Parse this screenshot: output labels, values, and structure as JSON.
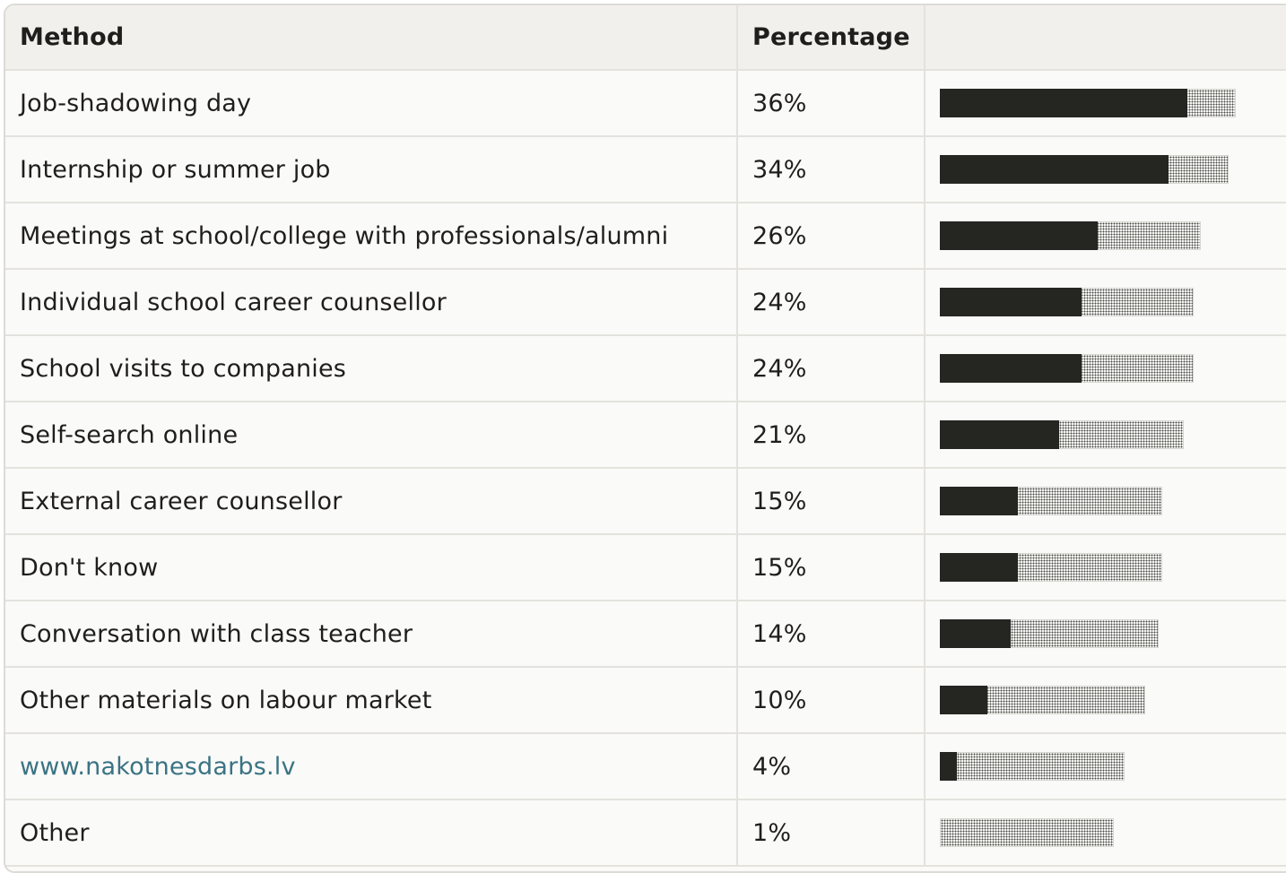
{
  "table": {
    "headers": {
      "method": "Method",
      "percentage": "Percentage",
      "bar": ""
    },
    "rows": [
      {
        "method": "Job-shadowing day",
        "percentage": "36%",
        "value": 36,
        "is_link": false
      },
      {
        "method": "Internship or summer job",
        "percentage": "34%",
        "value": 34,
        "is_link": false
      },
      {
        "method": "Meetings at school/college with professionals/alumni",
        "percentage": "26%",
        "value": 26,
        "is_link": false
      },
      {
        "method": "Individual school career counsellor",
        "percentage": "24%",
        "value": 24,
        "is_link": false
      },
      {
        "method": "School visits to companies",
        "percentage": "24%",
        "value": 24,
        "is_link": false
      },
      {
        "method": "Self-search online",
        "percentage": "21%",
        "value": 21,
        "is_link": false
      },
      {
        "method": "External career counsellor",
        "percentage": "15%",
        "value": 15,
        "is_link": false
      },
      {
        "method": "Don't know",
        "percentage": "15%",
        "value": 15,
        "is_link": false
      },
      {
        "method": "Conversation with class teacher",
        "percentage": "14%",
        "value": 14,
        "is_link": false
      },
      {
        "method": "Other materials on labour market",
        "percentage": "10%",
        "value": 10,
        "is_link": false
      },
      {
        "method": "www.nakotnesdarbs.lv",
        "percentage": "4%",
        "value": 4,
        "is_link": true
      },
      {
        "method": "Other",
        "percentage": "1%",
        "value": 1,
        "is_link": false
      }
    ]
  },
  "colors": {
    "bar_fill": "#252522",
    "link": "#3a7384",
    "header_bg": "#f1f0ec",
    "row_bg": "#fafaf8"
  }
}
